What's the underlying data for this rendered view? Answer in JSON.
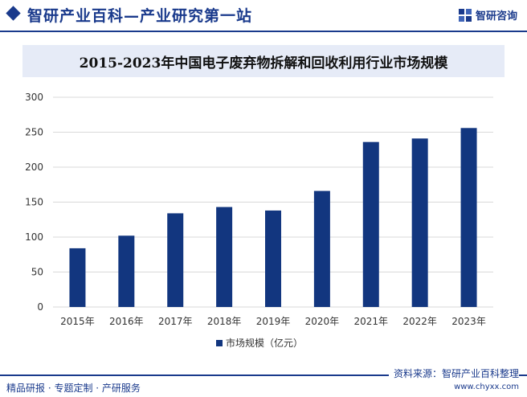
{
  "header": {
    "site_title": "智研产业百科—产业研究第一站",
    "logo_text": "智研咨询"
  },
  "chart_data": {
    "type": "bar",
    "title": "2015-2023年中国电子废弃物拆解和回收利用行业市场规模",
    "categories": [
      "2015年",
      "2016年",
      "2017年",
      "2018年",
      "2019年",
      "2020年",
      "2021年",
      "2022年",
      "2023年"
    ],
    "series": [
      {
        "name": "市场规模（亿元）",
        "values": [
          84,
          102,
          134,
          143,
          138,
          166,
          236,
          241,
          256
        ]
      }
    ],
    "ylim": [
      0,
      300
    ],
    "yticks": [
      0,
      50,
      100,
      150,
      200,
      250,
      300
    ],
    "grid": true,
    "legend_position": "bottom-center",
    "colors": {
      "bar": "#12367f",
      "grid": "#d9d9d9"
    }
  },
  "footer": {
    "left": "精品研报 · 专题定制 · 产研服务",
    "source": "资料来源：智研产业百科整理",
    "url": "www.chyxx.com"
  }
}
